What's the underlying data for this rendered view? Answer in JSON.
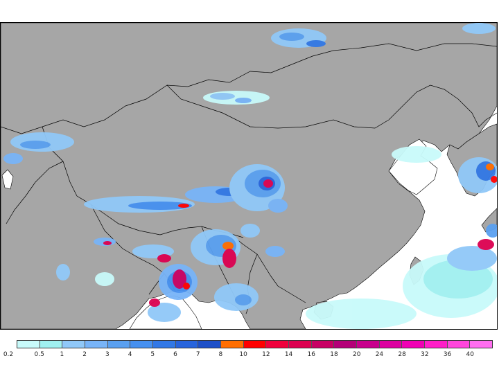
{
  "map": {
    "land_color": "#a6a6a6",
    "water_color": "#ffffff",
    "boundary_color": "#000000"
  },
  "legend": {
    "colors": [
      "#c8fafa",
      "#a0f0f0",
      "#90c8f8",
      "#78b4f8",
      "#5aa0f0",
      "#4690f0",
      "#3278e6",
      "#2864dc",
      "#1e50c8",
      "#ff6e00",
      "#ff0000",
      "#f0003c",
      "#dc0050",
      "#c80064",
      "#b40078",
      "#c8008c",
      "#dc00a0",
      "#f000b4",
      "#ff1ec8",
      "#ff46dc",
      "#ff6ef0"
    ],
    "labels": [
      "0.2",
      "0.5",
      "1",
      "2",
      "3",
      "4",
      "5",
      "6",
      "7",
      "8",
      "10",
      "12",
      "14",
      "16",
      "18",
      "20",
      "24",
      "28",
      "32",
      "36",
      "40"
    ]
  }
}
